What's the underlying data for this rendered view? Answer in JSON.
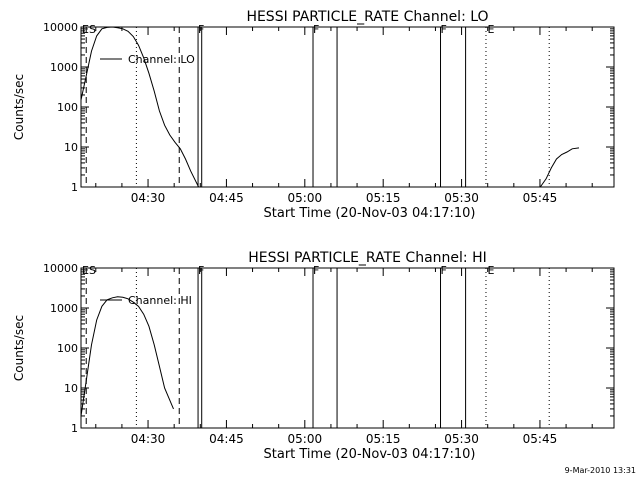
{
  "footer_timestamp": "9-Mar-2010 13:31",
  "chart_data": [
    {
      "type": "line",
      "title": "HESSI PARTICLE_RATE Channel: LO",
      "xlabel": "Start Time (20-Nov-03 04:17:10)",
      "ylabel": "Counts/sec",
      "yscale": "log",
      "ylim": [
        1,
        10000
      ],
      "xlim_minutes": [
        0,
        102
      ],
      "x_ticks": [
        {
          "label": "04:30",
          "min": 12.83
        },
        {
          "label": "04:45",
          "min": 27.83
        },
        {
          "label": "05:00",
          "min": 42.83
        },
        {
          "label": "05:15",
          "min": 57.83
        },
        {
          "label": "05:30",
          "min": 72.83
        },
        {
          "label": "05:45",
          "min": 87.83
        }
      ],
      "y_ticks": [
        {
          "label": "1",
          "value": 1
        },
        {
          "label": "10",
          "value": 10
        },
        {
          "label": "100",
          "value": 100
        },
        {
          "label": "1000",
          "value": 1000
        },
        {
          "label": "10000",
          "value": 10000
        }
      ],
      "legend": "Channel: LO",
      "series": [
        {
          "name": "Channel: LO",
          "x": [
            0,
            1,
            2,
            3,
            4,
            5,
            6,
            7,
            8,
            9,
            10,
            11,
            12,
            13,
            14,
            15,
            16,
            17,
            18,
            19,
            20,
            21,
            22.5
          ],
          "y": [
            150,
            600,
            2500,
            6000,
            9000,
            9800,
            10000,
            9600,
            9000,
            7800,
            5800,
            3500,
            1700,
            700,
            250,
            80,
            35,
            20,
            13,
            9,
            5,
            2.5,
            1
          ]
        },
        {
          "name": "",
          "x": [
            87.9,
            89,
            90,
            91,
            92,
            93,
            94,
            95.3
          ],
          "y": [
            1,
            1.6,
            3,
            5,
            6.5,
            7.5,
            9,
            9.5
          ]
        }
      ],
      "markers": [
        {
          "label": "ES",
          "min": 1.0,
          "style": "dashed",
          "text_min": 0.2
        },
        {
          "label": "",
          "min": 10.6,
          "style": "dotted"
        },
        {
          "label": "",
          "min": 18.8,
          "style": "dashed"
        },
        {
          "label": "F",
          "min": 22.4,
          "style": "solid",
          "text_min": 22.4
        },
        {
          "label": "",
          "min": 23.1,
          "style": "solid"
        },
        {
          "label": "F",
          "min": 44.4,
          "style": "solid",
          "text_min": 44.4
        },
        {
          "label": "",
          "min": 49.0,
          "style": "solid"
        },
        {
          "label": "F",
          "min": 68.8,
          "style": "solid",
          "text_min": 68.8
        },
        {
          "label": "",
          "min": 73.6,
          "style": "solid"
        },
        {
          "label": "E",
          "min": 77.5,
          "style": "dotted",
          "text_min": 77.8
        },
        {
          "label": "",
          "min": 89.6,
          "style": "dotted"
        }
      ]
    },
    {
      "type": "line",
      "title": "HESSI PARTICLE_RATE Channel: HI",
      "xlabel": "Start Time (20-Nov-03 04:17:10)",
      "ylabel": "Counts/sec",
      "yscale": "log",
      "ylim": [
        1,
        10000
      ],
      "xlim_minutes": [
        0,
        102
      ],
      "x_ticks": [
        {
          "label": "04:30",
          "min": 12.83
        },
        {
          "label": "04:45",
          "min": 27.83
        },
        {
          "label": "05:00",
          "min": 42.83
        },
        {
          "label": "05:15",
          "min": 57.83
        },
        {
          "label": "05:30",
          "min": 72.83
        },
        {
          "label": "05:45",
          "min": 87.83
        }
      ],
      "y_ticks": [
        {
          "label": "1",
          "value": 1
        },
        {
          "label": "10",
          "value": 10
        },
        {
          "label": "100",
          "value": 100
        },
        {
          "label": "1000",
          "value": 1000
        },
        {
          "label": "10000",
          "value": 10000
        }
      ],
      "legend": "Channel: HI",
      "series": [
        {
          "name": "Channel: HI",
          "x": [
            0,
            1,
            2,
            3,
            4,
            5,
            6,
            7,
            8,
            9,
            10,
            11,
            12,
            13,
            14,
            15,
            16,
            17.7
          ],
          "y": [
            2,
            15,
            120,
            500,
            1100,
            1600,
            1800,
            1900,
            1850,
            1700,
            1400,
            1100,
            700,
            350,
            120,
            35,
            10,
            3
          ]
        }
      ],
      "markers": [
        {
          "label": "ES",
          "min": 1.0,
          "style": "dashed",
          "text_min": 0.2
        },
        {
          "label": "",
          "min": 10.6,
          "style": "dotted"
        },
        {
          "label": "",
          "min": 18.8,
          "style": "dashed"
        },
        {
          "label": "F",
          "min": 22.4,
          "style": "solid",
          "text_min": 22.4
        },
        {
          "label": "",
          "min": 23.1,
          "style": "solid"
        },
        {
          "label": "F",
          "min": 44.4,
          "style": "solid",
          "text_min": 44.4
        },
        {
          "label": "",
          "min": 49.0,
          "style": "solid"
        },
        {
          "label": "F",
          "min": 68.8,
          "style": "solid",
          "text_min": 68.8
        },
        {
          "label": "",
          "min": 73.6,
          "style": "solid"
        },
        {
          "label": "E",
          "min": 77.5,
          "style": "dotted",
          "text_min": 77.8
        },
        {
          "label": "",
          "min": 89.6,
          "style": "dotted"
        }
      ]
    }
  ]
}
